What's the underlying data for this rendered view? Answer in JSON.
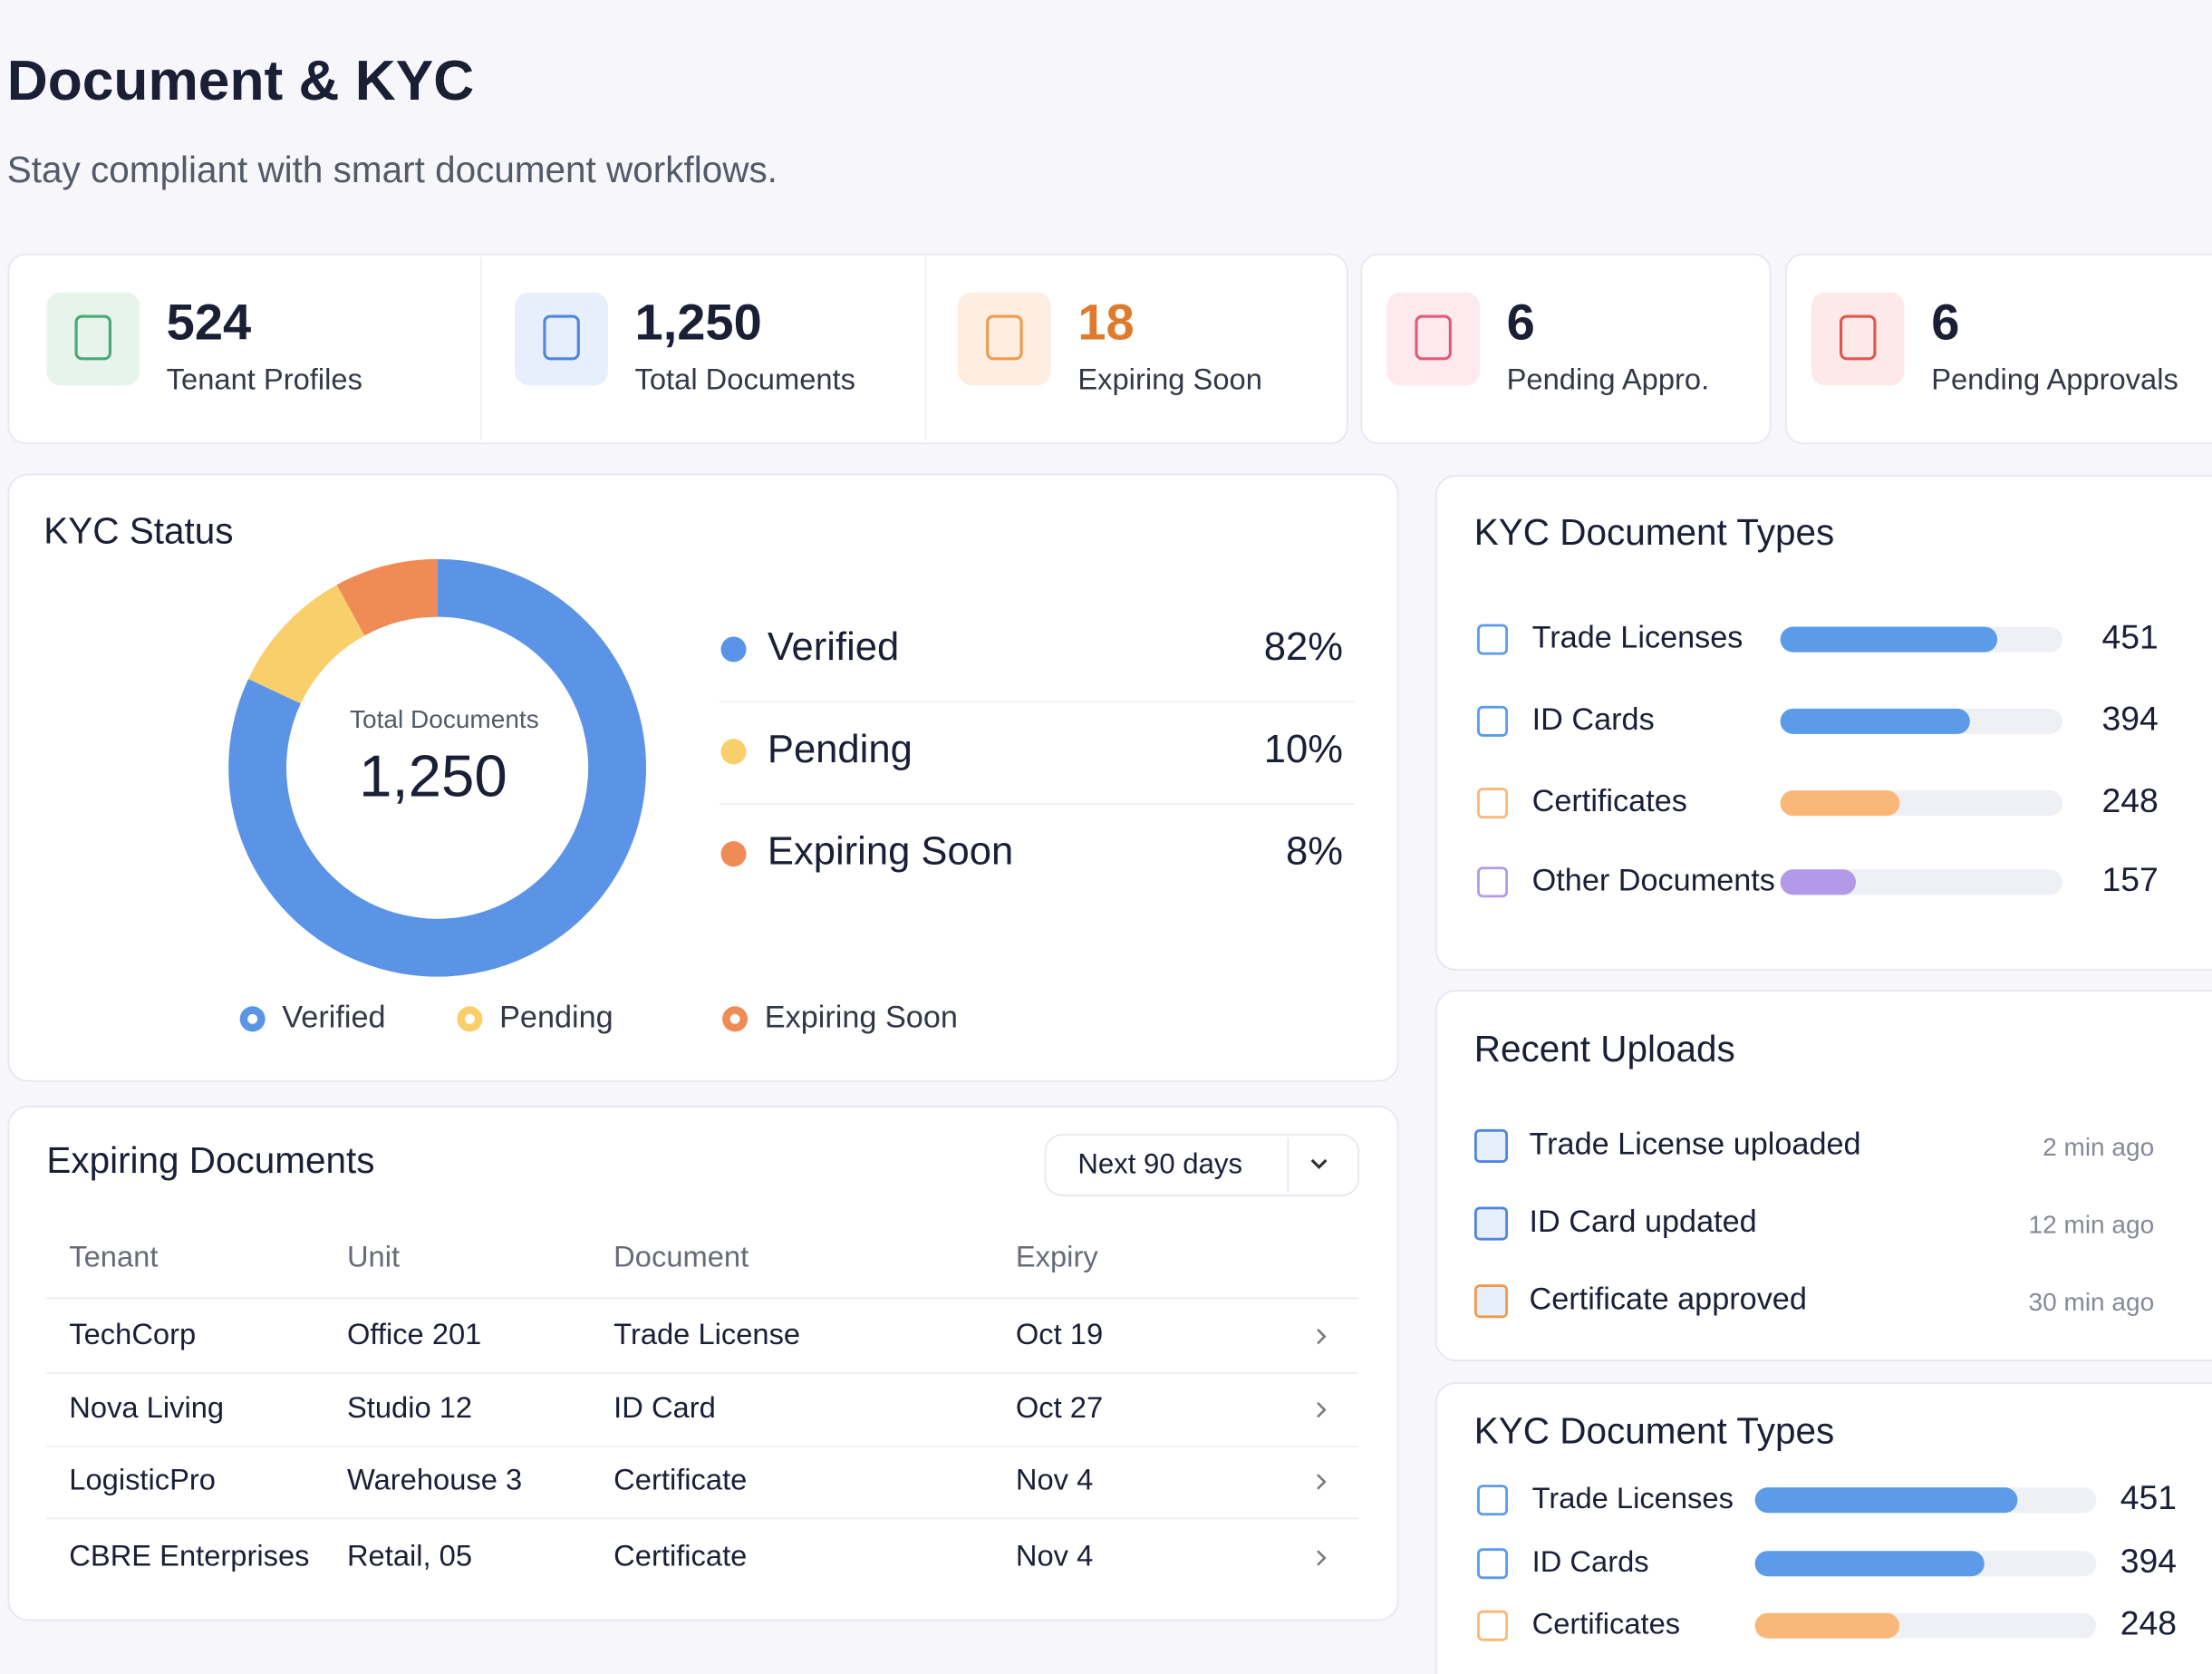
{
  "header": {
    "title": "Document & KYC",
    "subtitle": "Stay compliant with smart document workflows."
  },
  "stats": [
    {
      "value": "524",
      "label": "Tenant Profiles"
    },
    {
      "value": "1,250",
      "label": "Total Documents"
    },
    {
      "value": "18",
      "label": "Expiring Soon"
    },
    {
      "value": "6",
      "label": "Pending Appro."
    },
    {
      "value": "6",
      "label": "Pending Approvals"
    }
  ],
  "kyc_status": {
    "title": "KYC Status",
    "center_label": "Total Documents",
    "center_value": "1,250",
    "items": [
      {
        "name": "Verified",
        "value": 82,
        "label": "82%",
        "color": "#5b94e6"
      },
      {
        "name": "Pending",
        "value": 10,
        "label": "10%",
        "color": "#f8cf6a"
      },
      {
        "name": "Expiring Soon",
        "value": 8,
        "label": "8%",
        "color": "#ef8c55"
      }
    ]
  },
  "doc_types": {
    "title": "KYC Document Types",
    "items": [
      {
        "name": "Trade Licenses",
        "value": 451,
        "color": "#5b9be8"
      },
      {
        "name": "ID Cards",
        "value": 394,
        "color": "#5b9be8"
      },
      {
        "name": "Certificates",
        "value": 248,
        "color": "#f9b878"
      },
      {
        "name": "Other Documents",
        "value": 157,
        "color": "#b39ae8"
      }
    ]
  },
  "recent_uploads": {
    "title": "Recent Uploads",
    "items": [
      {
        "text": "Trade License uploaded",
        "time": "2 min ago"
      },
      {
        "text": "ID Card updated",
        "time": "12 min ago"
      },
      {
        "text": "Certificate approved",
        "time": "30 min ago"
      }
    ]
  },
  "doc_types_2": {
    "title": "KYC Document Types",
    "items": [
      {
        "name": "Trade Licenses",
        "value": 451,
        "color": "#5b9be8"
      },
      {
        "name": "ID Cards",
        "value": 394,
        "color": "#5b9be8"
      },
      {
        "name": "Certificates",
        "value": 248,
        "color": "#f9b878"
      }
    ]
  },
  "expiring": {
    "title": "Expiring Documents",
    "filter": "Next 90 days",
    "table": {
      "columns": [
        "Tenant",
        "Unit",
        "Document",
        "Expiry"
      ],
      "rows": [
        [
          "TechCorp",
          "Office 201",
          "Trade License",
          "Oct 19"
        ],
        [
          "Nova Living",
          "Studio 12",
          "ID Card",
          "Oct 27"
        ],
        [
          "LogisticPro",
          "Warehouse 3",
          "Certificate",
          "Nov 4"
        ],
        [
          "CBRE Enterprises",
          "Retail, 05",
          "Certificate",
          "Nov 4"
        ]
      ]
    }
  }
}
